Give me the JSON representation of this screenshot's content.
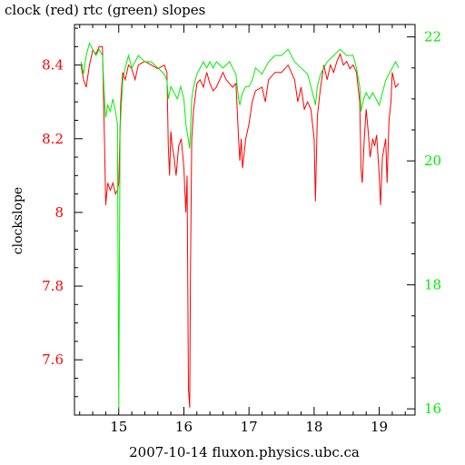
{
  "title": "clock (red) rtc (green) slopes",
  "chart_data": {
    "type": "line",
    "title": "clock (red) rtc (green) slopes",
    "xlabel": "2007-10-14 fluxon.physics.ubc.ca",
    "ylabel": "clockslope",
    "xlim": [
      14.32,
      19.55
    ],
    "ylim_left": [
      7.45,
      8.51
    ],
    "ylim_right": [
      15.9,
      22.2
    ],
    "x_ticks": [
      15,
      16,
      17,
      18,
      19
    ],
    "y_ticks_left": [
      7.6,
      7.8,
      8,
      8.2,
      8.4
    ],
    "y_ticks_right": [
      16,
      18,
      20,
      22
    ],
    "grid": false,
    "colors": {
      "clock": "#ff0000",
      "rtc": "#00ee00",
      "axis": "#000000"
    },
    "series": [
      {
        "name": "clock",
        "axis": "left",
        "color": "#ff0000",
        "points": [
          [
            14.42,
            8.4
          ],
          [
            14.46,
            8.36
          ],
          [
            14.5,
            8.34
          ],
          [
            14.55,
            8.4
          ],
          [
            14.6,
            8.44
          ],
          [
            14.65,
            8.43
          ],
          [
            14.7,
            8.45
          ],
          [
            14.75,
            8.45
          ],
          [
            14.78,
            8.2
          ],
          [
            14.8,
            8.02
          ],
          [
            14.83,
            8.08
          ],
          [
            14.87,
            8.06
          ],
          [
            14.91,
            8.08
          ],
          [
            14.95,
            8.05
          ],
          [
            14.98,
            8.06
          ],
          [
            15.0,
            8.08
          ],
          [
            15.03,
            8.3
          ],
          [
            15.06,
            8.38
          ],
          [
            15.1,
            8.36
          ],
          [
            15.15,
            8.4
          ],
          [
            15.2,
            8.39
          ],
          [
            15.25,
            8.36
          ],
          [
            15.3,
            8.4
          ],
          [
            15.4,
            8.41
          ],
          [
            15.5,
            8.4
          ],
          [
            15.6,
            8.39
          ],
          [
            15.7,
            8.4
          ],
          [
            15.74,
            8.38
          ],
          [
            15.76,
            8.18
          ],
          [
            15.78,
            8.1
          ],
          [
            15.8,
            8.22
          ],
          [
            15.82,
            8.18
          ],
          [
            15.85,
            8.15
          ],
          [
            15.88,
            8.1
          ],
          [
            15.92,
            8.18
          ],
          [
            15.96,
            8.2
          ],
          [
            16.0,
            8.12
          ],
          [
            16.03,
            8.0
          ],
          [
            16.05,
            8.1
          ],
          [
            16.07,
            7.52
          ],
          [
            16.09,
            7.47
          ],
          [
            16.1,
            7.8
          ],
          [
            16.12,
            8.2
          ],
          [
            16.15,
            8.28
          ],
          [
            16.2,
            8.35
          ],
          [
            16.25,
            8.36
          ],
          [
            16.3,
            8.34
          ],
          [
            16.35,
            8.38
          ],
          [
            16.4,
            8.35
          ],
          [
            16.45,
            8.33
          ],
          [
            16.5,
            8.34
          ],
          [
            16.55,
            8.36
          ],
          [
            16.6,
            8.38
          ],
          [
            16.65,
            8.36
          ],
          [
            16.7,
            8.35
          ],
          [
            16.75,
            8.34
          ],
          [
            16.8,
            8.35
          ],
          [
            16.84,
            8.2
          ],
          [
            16.86,
            8.14
          ],
          [
            16.88,
            8.2
          ],
          [
            16.9,
            8.12
          ],
          [
            16.95,
            8.2
          ],
          [
            17.0,
            8.24
          ],
          [
            17.05,
            8.3
          ],
          [
            17.1,
            8.33
          ],
          [
            17.2,
            8.34
          ],
          [
            17.25,
            8.3
          ],
          [
            17.3,
            8.36
          ],
          [
            17.4,
            8.38
          ],
          [
            17.5,
            8.38
          ],
          [
            17.6,
            8.4
          ],
          [
            17.7,
            8.36
          ],
          [
            17.75,
            8.3
          ],
          [
            17.8,
            8.34
          ],
          [
            17.85,
            8.28
          ],
          [
            17.9,
            8.3
          ],
          [
            17.95,
            8.28
          ],
          [
            18.0,
            8.2
          ],
          [
            18.02,
            8.03
          ],
          [
            18.05,
            8.26
          ],
          [
            18.1,
            8.34
          ],
          [
            18.15,
            8.4
          ],
          [
            18.2,
            8.36
          ],
          [
            18.25,
            8.4
          ],
          [
            18.3,
            8.38
          ],
          [
            18.35,
            8.41
          ],
          [
            18.4,
            8.43
          ],
          [
            18.45,
            8.4
          ],
          [
            18.5,
            8.41
          ],
          [
            18.55,
            8.39
          ],
          [
            18.6,
            8.4
          ],
          [
            18.65,
            8.38
          ],
          [
            18.7,
            8.3
          ],
          [
            18.72,
            8.12
          ],
          [
            18.74,
            8.08
          ],
          [
            18.77,
            8.2
          ],
          [
            18.8,
            8.28
          ],
          [
            18.83,
            8.22
          ],
          [
            18.86,
            8.15
          ],
          [
            18.9,
            8.2
          ],
          [
            18.93,
            8.18
          ],
          [
            18.96,
            8.21
          ],
          [
            19.0,
            8.1
          ],
          [
            19.02,
            8.02
          ],
          [
            19.05,
            8.15
          ],
          [
            19.1,
            8.2
          ],
          [
            19.12,
            8.08
          ],
          [
            19.15,
            8.25
          ],
          [
            19.18,
            8.3
          ],
          [
            19.2,
            8.38
          ],
          [
            19.25,
            8.34
          ],
          [
            19.3,
            8.35
          ]
        ]
      },
      {
        "name": "rtc",
        "axis": "right",
        "color": "#00ee00",
        "points": [
          [
            14.42,
            21.6
          ],
          [
            14.46,
            21.4
          ],
          [
            14.5,
            21.7
          ],
          [
            14.55,
            21.9
          ],
          [
            14.6,
            21.8
          ],
          [
            14.65,
            21.7
          ],
          [
            14.7,
            21.8
          ],
          [
            14.75,
            21.7
          ],
          [
            14.78,
            21.0
          ],
          [
            14.8,
            20.7
          ],
          [
            14.83,
            20.9
          ],
          [
            14.87,
            20.8
          ],
          [
            14.91,
            21.0
          ],
          [
            14.95,
            20.8
          ],
          [
            14.98,
            20.6
          ],
          [
            15.0,
            16.0
          ],
          [
            15.02,
            20.5
          ],
          [
            15.06,
            21.3
          ],
          [
            15.1,
            21.5
          ],
          [
            15.15,
            21.7
          ],
          [
            15.2,
            21.5
          ],
          [
            15.25,
            21.6
          ],
          [
            15.3,
            21.7
          ],
          [
            15.4,
            21.6
          ],
          [
            15.5,
            21.6
          ],
          [
            15.6,
            21.5
          ],
          [
            15.7,
            21.4
          ],
          [
            15.74,
            21.3
          ],
          [
            15.76,
            21.0
          ],
          [
            15.8,
            21.2
          ],
          [
            15.85,
            21.1
          ],
          [
            15.9,
            21.0
          ],
          [
            15.95,
            21.2
          ],
          [
            16.0,
            21.0
          ],
          [
            16.03,
            20.6
          ],
          [
            16.06,
            20.4
          ],
          [
            16.09,
            20.2
          ],
          [
            16.12,
            21.0
          ],
          [
            16.15,
            21.2
          ],
          [
            16.2,
            21.4
          ],
          [
            16.25,
            21.5
          ],
          [
            16.3,
            21.6
          ],
          [
            16.35,
            21.5
          ],
          [
            16.4,
            21.6
          ],
          [
            16.45,
            21.5
          ],
          [
            16.5,
            21.6
          ],
          [
            16.6,
            21.5
          ],
          [
            16.7,
            21.6
          ],
          [
            16.75,
            21.5
          ],
          [
            16.8,
            21.4
          ],
          [
            16.84,
            21.0
          ],
          [
            16.86,
            20.9
          ],
          [
            16.9,
            21.1
          ],
          [
            16.95,
            21.2
          ],
          [
            17.0,
            21.2
          ],
          [
            17.05,
            21.3
          ],
          [
            17.1,
            21.5
          ],
          [
            17.2,
            21.4
          ],
          [
            17.3,
            21.6
          ],
          [
            17.4,
            21.7
          ],
          [
            17.5,
            21.7
          ],
          [
            17.6,
            21.8
          ],
          [
            17.7,
            21.6
          ],
          [
            17.8,
            21.5
          ],
          [
            17.9,
            21.4
          ],
          [
            17.95,
            21.2
          ],
          [
            18.0,
            21.0
          ],
          [
            18.02,
            20.9
          ],
          [
            18.05,
            21.2
          ],
          [
            18.1,
            21.4
          ],
          [
            18.2,
            21.6
          ],
          [
            18.3,
            21.7
          ],
          [
            18.4,
            21.8
          ],
          [
            18.5,
            21.7
          ],
          [
            18.6,
            21.7
          ],
          [
            18.65,
            21.5
          ],
          [
            18.7,
            21.2
          ],
          [
            18.72,
            20.8
          ],
          [
            18.76,
            21.0
          ],
          [
            18.8,
            21.1
          ],
          [
            18.85,
            21.0
          ],
          [
            18.9,
            21.1
          ],
          [
            18.95,
            21.0
          ],
          [
            19.0,
            20.9
          ],
          [
            19.05,
            21.1
          ],
          [
            19.1,
            21.3
          ],
          [
            19.15,
            21.4
          ],
          [
            19.2,
            21.5
          ],
          [
            19.25,
            21.6
          ],
          [
            19.3,
            21.5
          ]
        ]
      }
    ]
  }
}
